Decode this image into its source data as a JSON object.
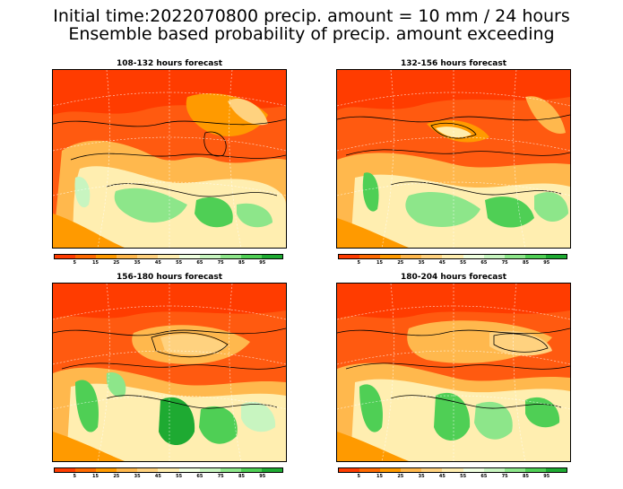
{
  "header": {
    "line1": "Initial time:2022070800 precip. amount = 10 mm / 24 hours",
    "line2": "Ensemble based probability of precip. amount exceeding"
  },
  "panels": [
    {
      "title": "108-132 hours forecast"
    },
    {
      "title": "132-156 hours forecast"
    },
    {
      "title": "156-180 hours forecast"
    },
    {
      "title": "180-204 hours forecast"
    }
  ],
  "colorbar": {
    "colors": [
      "#ff3c00",
      "#ff6a00",
      "#ff9a00",
      "#ffb84d",
      "#ffd27f",
      "#ffeeb0",
      "#f0ffe0",
      "#c8f5c0",
      "#8de68a",
      "#4fcf55",
      "#1eaa32"
    ],
    "labels": [
      "5",
      "15",
      "25",
      "35",
      "45",
      "55",
      "65",
      "75",
      "85",
      "95"
    ]
  }
}
